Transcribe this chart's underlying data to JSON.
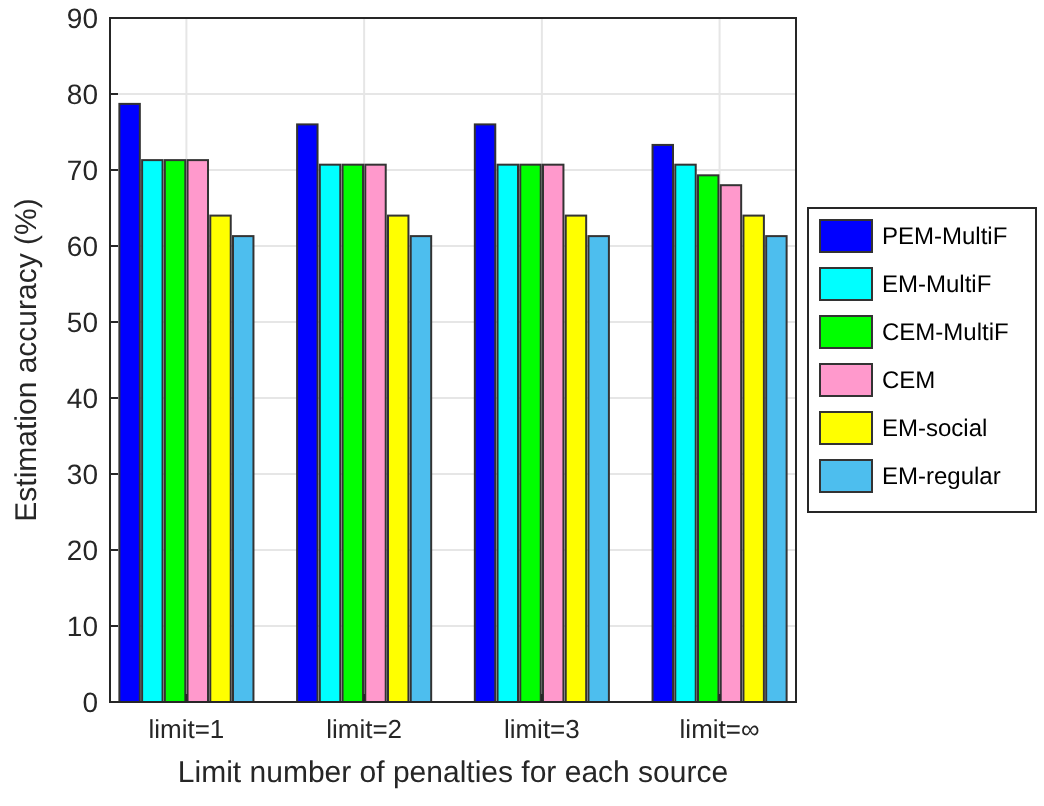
{
  "chart_data": {
    "type": "bar",
    "xlabel": "Limit number of penalties for each source",
    "ylabel": "Estimation accuracy (%)",
    "categories": [
      "limit=1",
      "limit=2",
      "limit=3",
      "limit=∞"
    ],
    "series": [
      {
        "name": "PEM-MultiF",
        "color": "#0000ff",
        "values": [
          78.7,
          76,
          76,
          73.3
        ]
      },
      {
        "name": "EM-MultiF",
        "color": "#00ffff",
        "values": [
          71.3,
          70.7,
          70.7,
          70.7
        ]
      },
      {
        "name": "CEM-MultiF",
        "color": "#00ff00",
        "values": [
          71.3,
          70.7,
          70.7,
          69.3
        ]
      },
      {
        "name": "CEM",
        "color": "#ff99cc",
        "values": [
          71.3,
          70.7,
          70.7,
          68
        ]
      },
      {
        "name": "EM-social",
        "color": "#ffff00",
        "values": [
          64,
          64,
          64,
          64
        ]
      },
      {
        "name": "EM-regular",
        "color": "#4dbeee",
        "values": [
          61.3,
          61.3,
          61.3,
          61.3
        ]
      }
    ],
    "ylim": [
      0,
      90
    ],
    "yticks": [
      0,
      10,
      20,
      30,
      40,
      50,
      60,
      70,
      80,
      90
    ],
    "grid": true,
    "legend": "right"
  }
}
